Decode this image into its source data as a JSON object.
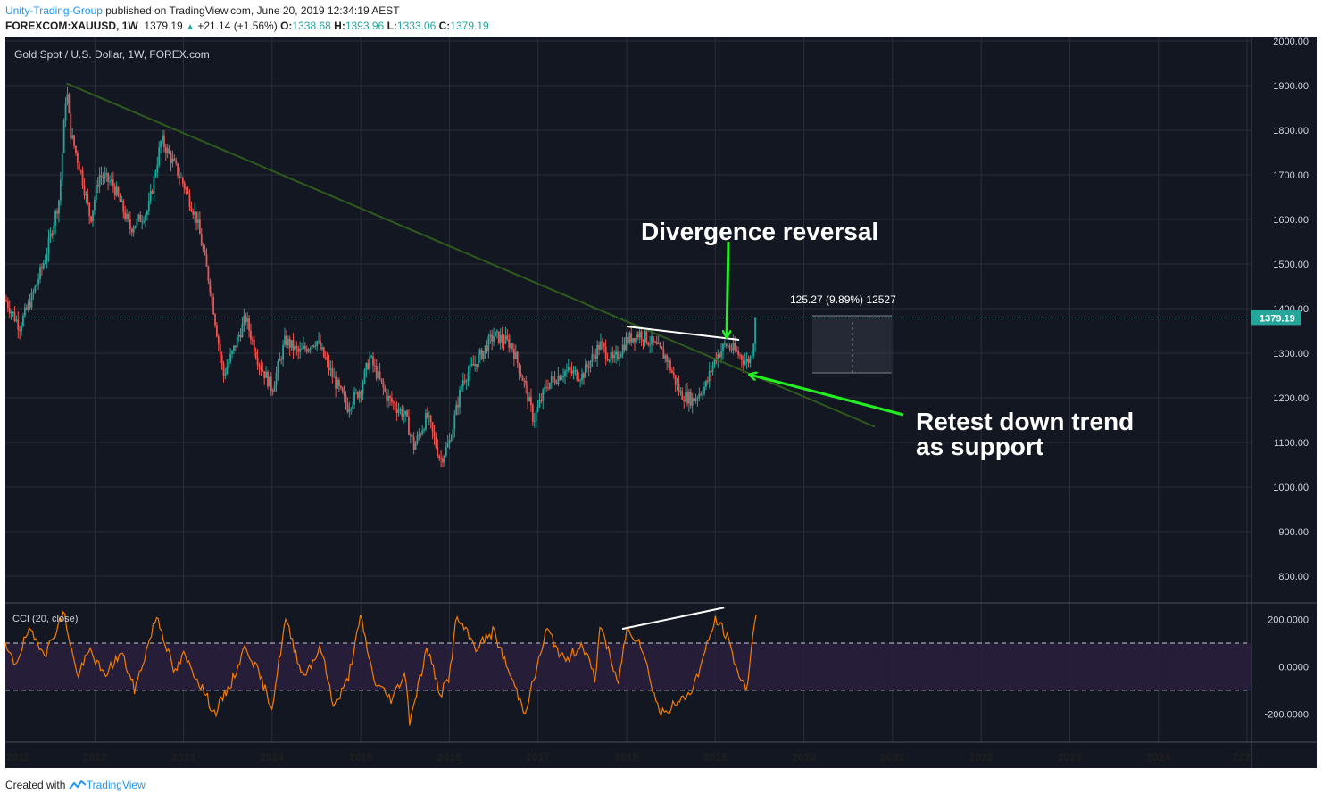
{
  "header": {
    "author": "Unity-Trading-Group",
    "published": "published on TradingView.com, June 20, 2019 12:34:19 AEST",
    "symbol": "FOREXCOM:XAUUSD, 1W",
    "last": "1379.19",
    "change": "+21.14 (+1.56%)",
    "o_label": "O:",
    "o_value": "1338.68",
    "h_label": "H:",
    "h_value": "1393.96",
    "l_label": "L:",
    "l_value": "1333.06",
    "c_label": "C:",
    "c_value": "1379.19"
  },
  "main_pane": {
    "title": "Gold Spot / U.S. Dollar, 1W, FOREX.com",
    "price_label": "1379.19",
    "measure_label": "125.27 (9.89%) 12527"
  },
  "cci_pane": {
    "title": "CCI (20, close)"
  },
  "annotations": {
    "divergence": "Divergence reversal",
    "retest_line1": "Retest down trend",
    "retest_line2": "as support"
  },
  "footer": {
    "created": "Created with",
    "brand": "TradingView"
  },
  "colors": {
    "background": "#131722",
    "grid": "#2a2e39",
    "bull": "#26a69a",
    "bear": "#ef5350",
    "trendline": "#2e5a1c",
    "annotation_arrow": "#22ee22",
    "cci_line": "#f57c00",
    "cci_band": "#2a1f3d"
  },
  "chart_data": [
    {
      "type": "candlestick",
      "pane": "price",
      "x_ticks": [
        "2011",
        "2012",
        "2013",
        "2014",
        "2015",
        "2016",
        "2017",
        "2018",
        "2019",
        "2020",
        "2021",
        "2022",
        "2023",
        "2024",
        "202"
      ],
      "y_ticks": [
        "2000.00",
        "1900.00",
        "1800.00",
        "1700.00",
        "1600.00",
        "1500.00",
        "1400.00",
        "1300.00",
        "1200.00",
        "1100.00",
        "1000.00",
        "900.00",
        "800.00"
      ],
      "ylim": [
        740,
        2010
      ],
      "xlim": [
        2010.99,
        2025.05
      ],
      "last_price": 1379.19,
      "approx_path": [
        [
          2010.99,
          1420
        ],
        [
          2011.15,
          1360
        ],
        [
          2011.3,
          1430
        ],
        [
          2011.45,
          1520
        ],
        [
          2011.6,
          1650
        ],
        [
          2011.68,
          1900
        ],
        [
          2011.72,
          1800
        ],
        [
          2011.85,
          1700
        ],
        [
          2011.95,
          1600
        ],
        [
          2012.05,
          1700
        ],
        [
          2012.2,
          1680
        ],
        [
          2012.4,
          1580
        ],
        [
          2012.6,
          1620
        ],
        [
          2012.75,
          1780
        ],
        [
          2012.9,
          1720
        ],
        [
          2013.0,
          1680
        ],
        [
          2013.15,
          1600
        ],
        [
          2013.3,
          1450
        ],
        [
          2013.45,
          1250
        ],
        [
          2013.55,
          1300
        ],
        [
          2013.7,
          1380
        ],
        [
          2013.85,
          1280
        ],
        [
          2014.0,
          1220
        ],
        [
          2014.15,
          1330
        ],
        [
          2014.3,
          1300
        ],
        [
          2014.5,
          1330
        ],
        [
          2014.7,
          1240
        ],
        [
          2014.85,
          1180
        ],
        [
          2015.0,
          1220
        ],
        [
          2015.1,
          1290
        ],
        [
          2015.3,
          1200
        ],
        [
          2015.5,
          1160
        ],
        [
          2015.6,
          1090
        ],
        [
          2015.75,
          1160
        ],
        [
          2015.9,
          1060
        ],
        [
          2016.0,
          1100
        ],
        [
          2016.15,
          1240
        ],
        [
          2016.3,
          1280
        ],
        [
          2016.5,
          1340
        ],
        [
          2016.7,
          1320
        ],
        [
          2016.85,
          1230
        ],
        [
          2016.95,
          1150
        ],
        [
          2017.1,
          1230
        ],
        [
          2017.3,
          1260
        ],
        [
          2017.5,
          1250
        ],
        [
          2017.7,
          1320
        ],
        [
          2017.85,
          1280
        ],
        [
          2018.0,
          1330
        ],
        [
          2018.15,
          1345
        ],
        [
          2018.3,
          1320
        ],
        [
          2018.45,
          1290
        ],
        [
          2018.6,
          1210
        ],
        [
          2018.75,
          1195
        ],
        [
          2018.9,
          1230
        ],
        [
          2019.0,
          1290
        ],
        [
          2019.12,
          1320
        ],
        [
          2019.25,
          1300
        ],
        [
          2019.35,
          1280
        ],
        [
          2019.4,
          1290
        ],
        [
          2019.47,
          1379
        ]
      ],
      "trendlines": [
        {
          "name": "down trend",
          "from": [
            2011.68,
            1905
          ],
          "to": [
            2020.8,
            1135
          ]
        },
        {
          "name": "price divergence line",
          "from": [
            2018.0,
            1360
          ],
          "to": [
            2019.27,
            1330
          ]
        }
      ],
      "measure": {
        "from_price": 1266,
        "to_price": 1392,
        "x_range": [
          2020.08,
          2021.0
        ]
      }
    },
    {
      "type": "line",
      "pane": "cci",
      "title": "CCI (20, close)",
      "y_ticks": [
        "200.0000",
        "0.0000",
        "-200.0000"
      ],
      "bands": [
        100,
        -100
      ],
      "ylim": [
        -320,
        270
      ],
      "approx_path": [
        [
          2010.99,
          80
        ],
        [
          2011.1,
          10
        ],
        [
          2011.25,
          150
        ],
        [
          2011.45,
          60
        ],
        [
          2011.65,
          230
        ],
        [
          2011.8,
          -40
        ],
        [
          2011.95,
          70
        ],
        [
          2012.1,
          -40
        ],
        [
          2012.3,
          60
        ],
        [
          2012.45,
          -100
        ],
        [
          2012.7,
          220
        ],
        [
          2012.9,
          -30
        ],
        [
          2013.0,
          50
        ],
        [
          2013.2,
          -80
        ],
        [
          2013.35,
          -200
        ],
        [
          2013.55,
          -60
        ],
        [
          2013.7,
          90
        ],
        [
          2013.85,
          -30
        ],
        [
          2014.0,
          -170
        ],
        [
          2014.15,
          200
        ],
        [
          2014.35,
          -40
        ],
        [
          2014.55,
          80
        ],
        [
          2014.7,
          -170
        ],
        [
          2014.85,
          -60
        ],
        [
          2015.0,
          210
        ],
        [
          2015.15,
          -60
        ],
        [
          2015.35,
          -140
        ],
        [
          2015.5,
          -20
        ],
        [
          2015.55,
          -230
        ],
        [
          2015.75,
          80
        ],
        [
          2015.9,
          -120
        ],
        [
          2016.0,
          -40
        ],
        [
          2016.08,
          210
        ],
        [
          2016.3,
          80
        ],
        [
          2016.5,
          150
        ],
        [
          2016.7,
          -50
        ],
        [
          2016.85,
          -190
        ],
        [
          2016.95,
          -60
        ],
        [
          2017.1,
          160
        ],
        [
          2017.3,
          20
        ],
        [
          2017.5,
          100
        ],
        [
          2017.65,
          -60
        ],
        [
          2017.7,
          190
        ],
        [
          2017.9,
          -80
        ],
        [
          2018.0,
          160
        ],
        [
          2018.15,
          110
        ],
        [
          2018.3,
          -100
        ],
        [
          2018.38,
          -200
        ],
        [
          2018.6,
          -150
        ],
        [
          2018.75,
          -90
        ],
        [
          2018.9,
          80
        ],
        [
          2019.0,
          200
        ],
        [
          2019.12,
          140
        ],
        [
          2019.28,
          -50
        ],
        [
          2019.35,
          -100
        ],
        [
          2019.4,
          60
        ],
        [
          2019.47,
          260
        ]
      ],
      "trendlines": [
        {
          "name": "cci divergence line",
          "from": [
            2017.95,
            160
          ],
          "to": [
            2019.1,
            250
          ]
        }
      ]
    }
  ]
}
